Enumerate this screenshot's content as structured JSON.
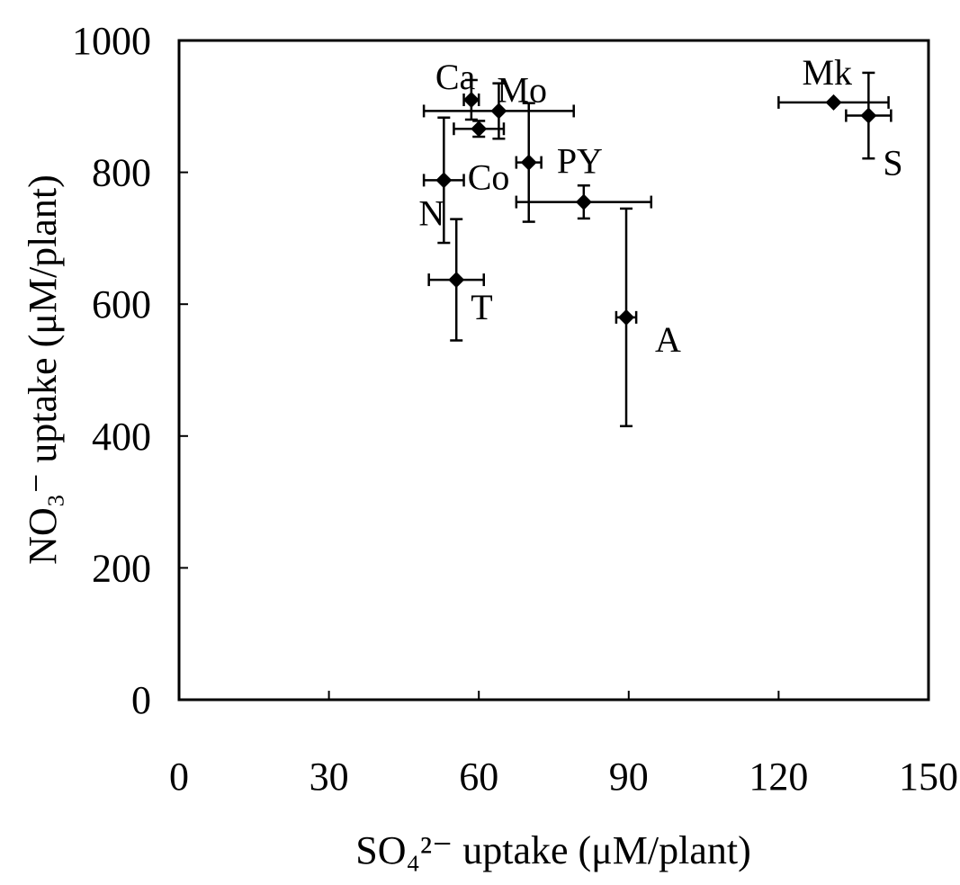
{
  "chart_data": {
    "type": "scatter",
    "title": "",
    "xlabel": "SO₄²⁻ uptake (μM/plant)",
    "ylabel": "NO₃⁻ uptake (μM/plant)",
    "xlim": [
      0,
      150
    ],
    "ylim": [
      0,
      1000
    ],
    "xticks": [
      0,
      30,
      60,
      90,
      120,
      150
    ],
    "yticks": [
      0,
      200,
      400,
      600,
      800,
      1000
    ],
    "grid": false,
    "legend": "none",
    "points": [
      {
        "label": "Ca",
        "x": 58.5,
        "y": 910,
        "xerr": 1.5,
        "yerr": 30
      },
      {
        "label": "Mo",
        "x": 64,
        "y": 893,
        "xerr": 15,
        "yerr": 42
      },
      {
        "label": "",
        "x": 60,
        "y": 866,
        "xerr": 5,
        "yerr": 12
      },
      {
        "label": "N",
        "x": 53,
        "y": 788,
        "xerr": 4,
        "yerr": 95
      },
      {
        "label": "Co",
        "x": 70,
        "y": 815,
        "xerr": 2.5,
        "yerr": 90
      },
      {
        "label": "PY",
        "x": 81,
        "y": 755,
        "xerr": 13.5,
        "yerr": 25
      },
      {
        "label": "T",
        "x": 55.5,
        "y": 637,
        "xerr": 5.5,
        "yerr": 92
      },
      {
        "label": "A",
        "x": 89.5,
        "y": 580,
        "xerr": 2,
        "yerr": 165
      },
      {
        "label": "Mk",
        "x": 131,
        "y": 906,
        "xerr": 11,
        "yerr": 0
      },
      {
        "label": "S",
        "x": 138,
        "y": 886,
        "xerr": 4.5,
        "yerr": 65
      }
    ]
  }
}
